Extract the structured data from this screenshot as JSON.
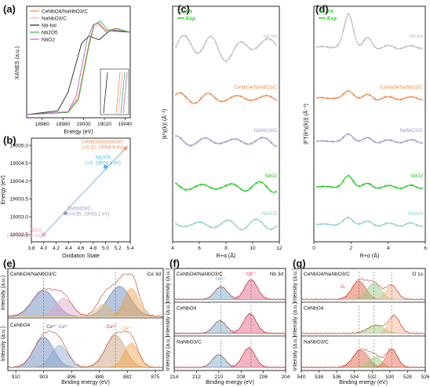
{
  "panels": {
    "a": {
      "label": "(a)",
      "xlabel": "Energy (eV)",
      "ylabel": "XANES (a.u.)",
      "xticks": [
        "18960",
        "18980",
        "19000",
        "19020",
        "19040"
      ],
      "legend": [
        "CeNbO4/NaNbO3/C",
        "NaNbO3/C",
        "Nb-foil",
        "Nb2O5",
        "NbO2"
      ]
    },
    "b": {
      "label": "(b)",
      "xlabel": "Oxidation State",
      "ylabel": "Energy (eV)",
      "xticks": [
        "3.8",
        "4.0",
        "4.2",
        "4.4",
        "4.6",
        "4.8",
        "5.0",
        "5.2",
        "5.4"
      ],
      "yticks": [
        "19002.5",
        "19003.0",
        "19003.5",
        "19004.0",
        "19004.5",
        "19005.0"
      ],
      "points": [
        {
          "name": "NbO2",
          "coord": "(+4, 19002.5 eV)",
          "x": 4.0,
          "y": 19002.5,
          "color": "#f4a6b8"
        },
        {
          "name": "NaNbO3/C",
          "coord": "(+4.35, 19003.1 eV)",
          "x": 4.35,
          "y": 19003.1,
          "color": "#9b9bc8"
        },
        {
          "name": "Nb2O5",
          "coord": "(+5, 19004.4 eV)",
          "x": 5.0,
          "y": 19004.4,
          "color": "#5ab4e6"
        },
        {
          "name": "CeNbO4/NaNbO3/C",
          "coord": "(+5.32, 19004.9 eV)",
          "x": 5.32,
          "y": 19004.9,
          "color": "#f08a4b"
        }
      ]
    },
    "c": {
      "label": "(c)",
      "xlabel": "R+α (Å)",
      "ylabel": "|k²χ(k)| (Å⁻²)",
      "xticks": [
        "4",
        "6",
        "8",
        "10",
        "12"
      ],
      "legend": [
        "Fit",
        "Exp"
      ],
      "traces": [
        "Nb-foil",
        "CeNbO4/NaNbO3/C",
        "NaNbO3/C",
        "NbO2",
        "Nb2O5"
      ]
    },
    "d": {
      "label": "(d)",
      "xlabel": "R+α (Å)",
      "ylabel": "|FT(k²χ(k))| (Å⁻³)",
      "xticks": [
        "0",
        "2",
        "4",
        "6"
      ],
      "legend": [
        "Fit",
        "Exp"
      ],
      "traces": [
        "Nb-foil",
        "CeNbO4/NaNbO3/C",
        "NaNbO3/C",
        "NbO2",
        "Nb2O5"
      ]
    },
    "e": {
      "label": "(e)",
      "xlabel": "Binding energy (eV)",
      "ylabel": "Intensity (a.u.)",
      "xticks": [
        "910",
        "903",
        "896",
        "889",
        "882",
        "875"
      ],
      "tag": "Ce 3d",
      "rows": [
        "CeNbO4/NaNbO3/C",
        "CeNbO4"
      ],
      "peaks": [
        "Ce⁴⁺",
        "Ce³⁺",
        "Ce³⁺",
        "Ce⁴⁺"
      ]
    },
    "f": {
      "label": "(f)",
      "xlabel": "Binding energy (eV)",
      "ylabel": "Intensity (a.u.)",
      "xticks": [
        "214",
        "212",
        "210",
        "208",
        "206",
        "204"
      ],
      "tag": "Nb 3d",
      "rows": [
        "CeNbO4/NaNbO3/C",
        "CeNbO4",
        "NaNbO3/C"
      ],
      "peaks": [
        "Nb⁵⁺",
        "Nb⁵⁺"
      ]
    },
    "g": {
      "label": "(g)",
      "xlabel": "Binding energy (eV)",
      "ylabel": "Intensity (a.u.)",
      "xticks": [
        "540",
        "538",
        "536",
        "534",
        "532",
        "530",
        "528",
        "526"
      ],
      "tag": "O 1s",
      "rows": [
        "CeNbO4/NaNbO3/C",
        "CeNbO4",
        "NaNbO3/C"
      ],
      "peaks": [
        "Oᵥ"
      ]
    }
  },
  "colors": {
    "ceno": "#f08a4b",
    "nano": "#9b9bc8",
    "foil": "#222222",
    "nb2o5": "#2fb84a",
    "nbo2": "#b86cc0",
    "gray": "#bdbdbd",
    "green": "#22cc22",
    "teal": "#8fcfcb"
  },
  "chart_data": [
    {
      "type": "line",
      "panel": "a",
      "xlabel": "Energy (eV)",
      "ylabel": "XANES (a.u.)",
      "xlim": [
        18945,
        19045
      ],
      "series": [
        {
          "name": "CeNbO4/NaNbO3/C",
          "x": [
            18945,
            18985,
            18995,
            19005,
            19010,
            19015,
            19022,
            19030,
            19045
          ],
          "y": [
            0.0,
            0.03,
            0.25,
            0.95,
            1.2,
            1.22,
            1.12,
            1.15,
            1.1
          ]
        },
        {
          "name": "NaNbO3/C",
          "x": [
            18945,
            18985,
            18995,
            19005,
            19010,
            19015,
            19022,
            19030,
            19045
          ],
          "y": [
            0.0,
            0.03,
            0.22,
            0.9,
            1.17,
            1.2,
            1.1,
            1.13,
            1.1
          ]
        },
        {
          "name": "Nb-foil",
          "x": [
            18945,
            18975,
            18985,
            18990,
            18998,
            19005,
            19015,
            19025,
            19045
          ],
          "y": [
            0.0,
            0.05,
            0.3,
            0.55,
            0.95,
            1.05,
            1.0,
            1.12,
            1.1
          ]
        },
        {
          "name": "Nb2O5",
          "x": [
            18945,
            18985,
            18995,
            19005,
            19010,
            19016,
            19024,
            19032,
            19045
          ],
          "y": [
            0.0,
            0.03,
            0.2,
            0.92,
            1.2,
            1.25,
            1.12,
            1.15,
            1.1
          ]
        },
        {
          "name": "NbO2",
          "x": [
            18945,
            18985,
            18993,
            19003,
            19009,
            19014,
            19022,
            19030,
            19045
          ],
          "y": [
            0.0,
            0.04,
            0.26,
            0.98,
            1.2,
            1.22,
            1.1,
            1.13,
            1.1
          ]
        }
      ]
    },
    {
      "type": "scatter",
      "panel": "b",
      "xlabel": "Oxidation State",
      "ylabel": "Energy (eV)",
      "xlim": [
        3.8,
        5.4
      ],
      "ylim": [
        19002.3,
        19005.2
      ],
      "x": [
        4.0,
        4.35,
        5.0,
        5.32
      ],
      "y": [
        19002.5,
        19003.1,
        19004.4,
        19004.9
      ],
      "labels": [
        "NbO2",
        "NaNbO3/C",
        "Nb2O5",
        "CeNbO4/NaNbO3/C"
      ]
    }
  ]
}
